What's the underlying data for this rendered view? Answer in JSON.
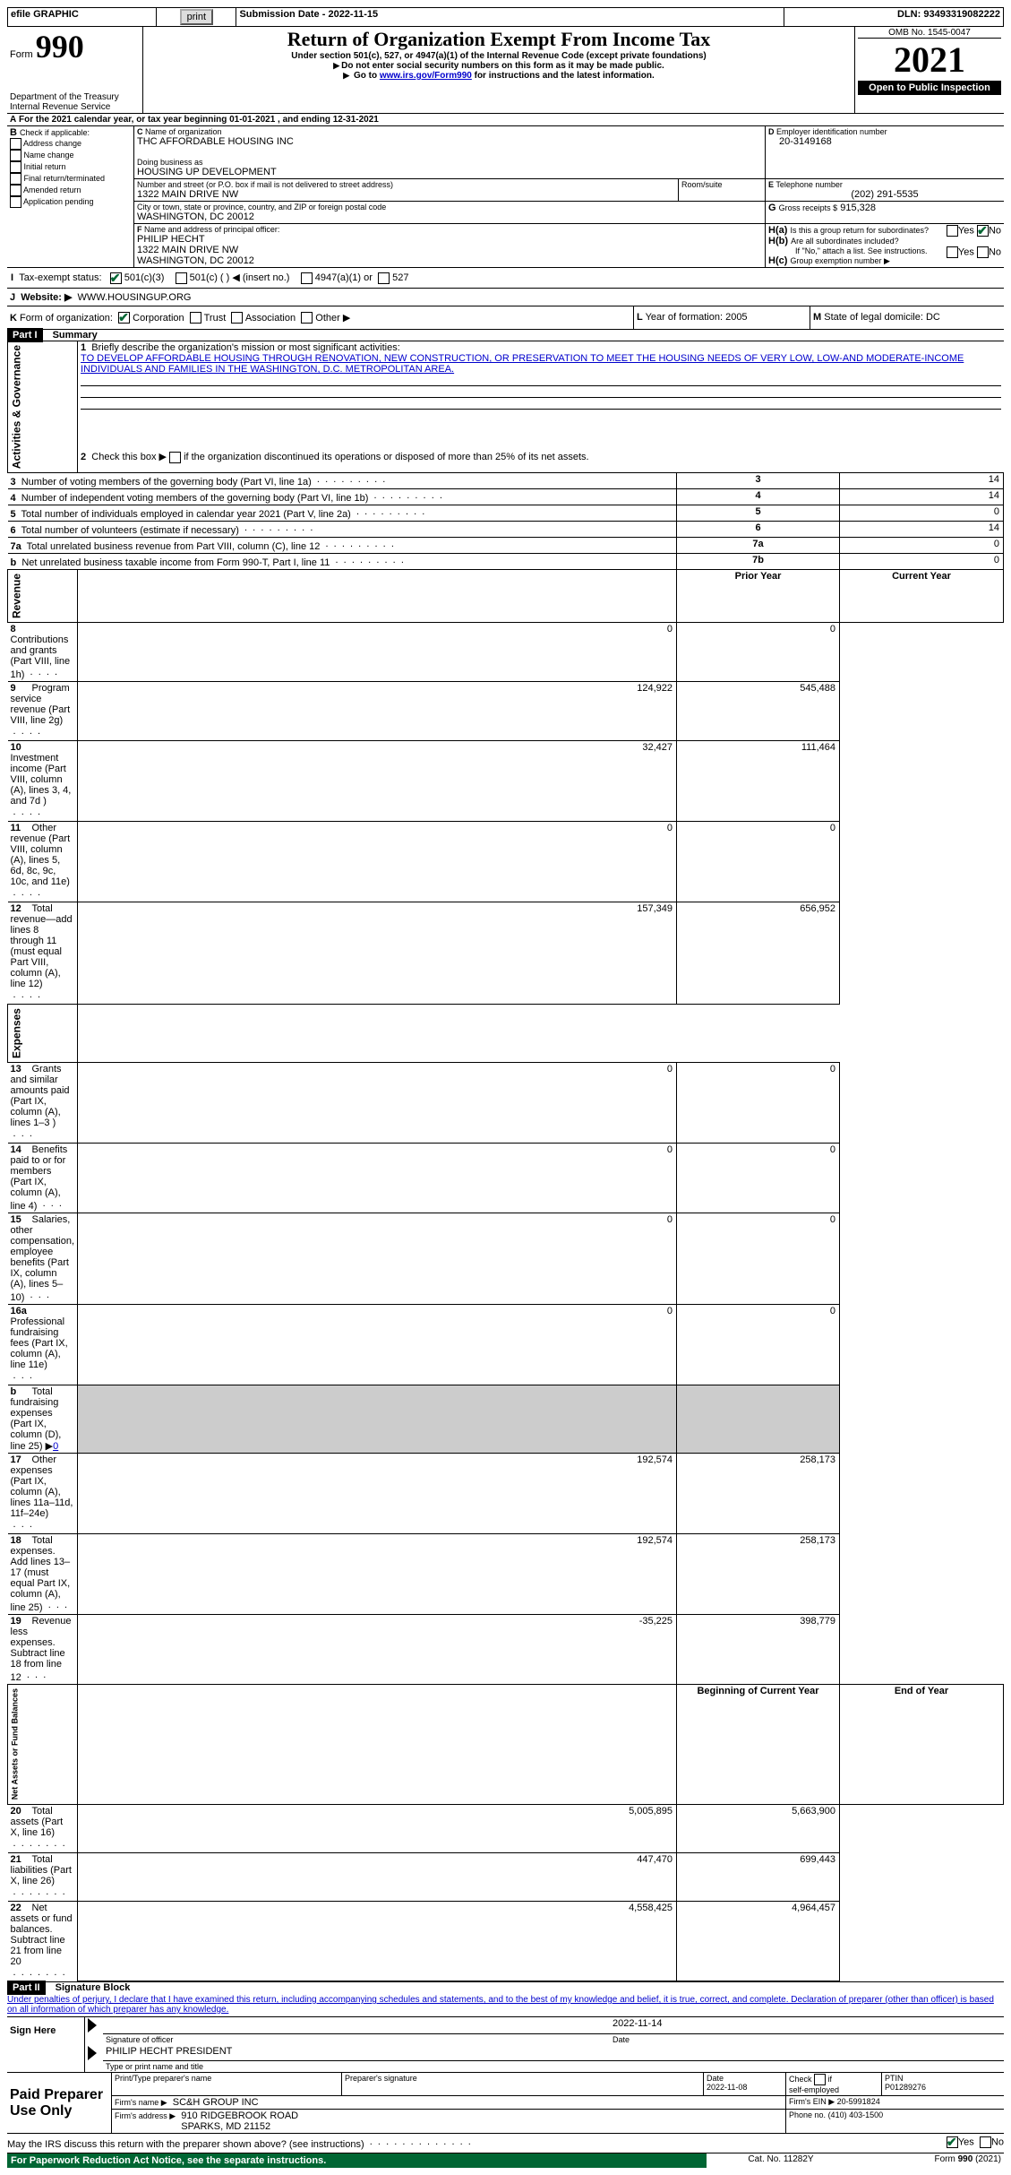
{
  "topbar": {
    "efile_label": "efile GRAPHIC",
    "print_btn": "print",
    "submission_label": "Submission Date - 2022-11-15",
    "dln_label": "DLN: 93493319082222"
  },
  "header": {
    "form_label": "Form",
    "form_number": "990",
    "dept": "Department of the Treasury\nInternal Revenue Service",
    "title": "Return of Organization Exempt From Income Tax",
    "subtitle": "Under section 501(c), 527, or 4947(a)(1) of the Internal Revenue Code (except private foundations)",
    "note1": "Do not enter social security numbers on this form as it may be made public.",
    "note2_pre": "Go to ",
    "note2_link": "www.irs.gov/Form990",
    "note2_post": " for instructions and the latest information.",
    "omb": "OMB No. 1545-0047",
    "year": "2021",
    "open_inspection": "Open to Public Inspection"
  },
  "sectionA": {
    "a_line": "For the 2021 calendar year, or tax year beginning 01-01-2021    , and ending 12-31-2021",
    "b_label": "Check if applicable:",
    "b_checks": [
      "Address change",
      "Name change",
      "Initial return",
      "Final return/terminated",
      "Amended return",
      "Application pending"
    ],
    "c_label": "Name of organization",
    "c_org": "THC AFFORDABLE HOUSING INC",
    "dba_label": "Doing business as",
    "dba": "HOUSING UP DEVELOPMENT",
    "street_label": "Number and street (or P.O. box if mail is not delivered to street address)",
    "street": "1322 MAIN DRIVE NW",
    "room_label": "Room/suite",
    "city_label": "City or town, state or province, country, and ZIP or foreign postal code",
    "city": "WASHINGTON, DC  20012",
    "d_label": "Employer identification number",
    "d_ein": "20-3149168",
    "e_label": "Telephone number",
    "e_phone": "(202) 291-5535",
    "g_label": "Gross receipts $",
    "g_amount": "915,328",
    "f_label": "Name and address of principal officer:",
    "f_officer": "PHILIP HECHT\n1322 MAIN DRIVE NW\nWASHINGTON, DC  20012",
    "ha_label": "Is this a group return for subordinates?",
    "hb_label": "Are all subordinates included?",
    "h_note": "If \"No,\" attach a list. See instructions.",
    "hc_label": "Group exemption number ▶",
    "yes": "Yes",
    "no": "No",
    "i_label": "Tax-exempt status:",
    "i_opts": [
      "501(c)(3)",
      "501(c) (  ) ◀ (insert no.)",
      "4947(a)(1) or",
      "527"
    ],
    "j_label": "Website: ▶",
    "j_site": "WWW.HOUSINGUP.ORG",
    "k_label": "Form of organization:",
    "k_opts": [
      "Corporation",
      "Trust",
      "Association",
      "Other ▶"
    ],
    "l_label": "Year of formation:",
    "l_val": "2005",
    "m_label": "State of legal domicile:",
    "m_val": "DC"
  },
  "part1": {
    "heading": "Part I",
    "title": "Summary",
    "line1_label": "Briefly describe the organization's mission or most significant activities:",
    "line1_text": "TO DEVELOP AFFORDABLE HOUSING THROUGH RENOVATION, NEW CONSTRUCTION, OR PRESERVATION TO MEET THE HOUSING NEEDS OF VERY LOW, LOW-AND MODERATE-INCOME INDIVIDUALS AND FAMILIES IN THE WASHINGTON, D.C. METROPOLITAN AREA.",
    "line2": "Check this box ▶  if the organization discontinued its operations or disposed of more than 25% of its net assets.",
    "governance_tab": "Activities & Governance",
    "revenue_tab": "Revenue",
    "expenses_tab": "Expenses",
    "netassets_tab": "Net Assets or Fund Balances",
    "gov_rows": [
      {
        "n": "3",
        "label": "Number of voting members of the governing body (Part VI, line 1a)",
        "box": "3",
        "val": "14"
      },
      {
        "n": "4",
        "label": "Number of independent voting members of the governing body (Part VI, line 1b)",
        "box": "4",
        "val": "14"
      },
      {
        "n": "5",
        "label": "Total number of individuals employed in calendar year 2021 (Part V, line 2a)",
        "box": "5",
        "val": "0"
      },
      {
        "n": "6",
        "label": "Total number of volunteers (estimate if necessary)",
        "box": "6",
        "val": "14"
      },
      {
        "n": "7a",
        "label": "Total unrelated business revenue from Part VIII, column (C), line 12",
        "box": "7a",
        "val": "0"
      },
      {
        "n": "b",
        "label": "Net unrelated business taxable income from Form 990-T, Part I, line 11",
        "box": "7b",
        "val": "0"
      }
    ],
    "col_prior": "Prior Year",
    "col_current": "Current Year",
    "rev_rows": [
      {
        "n": "8",
        "label": "Contributions and grants (Part VIII, line 1h)",
        "p": "0",
        "c": "0"
      },
      {
        "n": "9",
        "label": "Program service revenue (Part VIII, line 2g)",
        "p": "124,922",
        "c": "545,488"
      },
      {
        "n": "10",
        "label": "Investment income (Part VIII, column (A), lines 3, 4, and 7d )",
        "p": "32,427",
        "c": "111,464"
      },
      {
        "n": "11",
        "label": "Other revenue (Part VIII, column (A), lines 5, 6d, 8c, 9c, 10c, and 11e)",
        "p": "0",
        "c": "0"
      },
      {
        "n": "12",
        "label": "Total revenue—add lines 8 through 11 (must equal Part VIII, column (A), line 12)",
        "p": "157,349",
        "c": "656,952"
      }
    ],
    "exp_rows": [
      {
        "n": "13",
        "label": "Grants and similar amounts paid (Part IX, column (A), lines 1–3 )",
        "p": "0",
        "c": "0"
      },
      {
        "n": "14",
        "label": "Benefits paid to or for members (Part IX, column (A), line 4)",
        "p": "0",
        "c": "0"
      },
      {
        "n": "15",
        "label": "Salaries, other compensation, employee benefits (Part IX, column (A), lines 5–10)",
        "p": "0",
        "c": "0"
      },
      {
        "n": "16a",
        "label": "Professional fundraising fees (Part IX, column (A), line 11e)",
        "p": "0",
        "c": "0"
      },
      {
        "n": "b",
        "label": "Total fundraising expenses (Part IX, column (D), line 25) ▶",
        "link": "0",
        "p": "",
        "c": ""
      },
      {
        "n": "17",
        "label": "Other expenses (Part IX, column (A), lines 11a–11d, 11f–24e)",
        "p": "192,574",
        "c": "258,173"
      },
      {
        "n": "18",
        "label": "Total expenses. Add lines 13–17 (must equal Part IX, column (A), line 25)",
        "p": "192,574",
        "c": "258,173"
      },
      {
        "n": "19",
        "label": "Revenue less expenses. Subtract line 18 from line 12",
        "p": "-35,225",
        "c": "398,779"
      }
    ],
    "col_begin": "Beginning of Current Year",
    "col_end": "End of Year",
    "na_rows": [
      {
        "n": "20",
        "label": "Total assets (Part X, line 16)",
        "p": "5,005,895",
        "c": "5,663,900"
      },
      {
        "n": "21",
        "label": "Total liabilities (Part X, line 26)",
        "p": "447,470",
        "c": "699,443"
      },
      {
        "n": "22",
        "label": "Net assets or fund balances. Subtract line 21 from line 20",
        "p": "4,558,425",
        "c": "4,964,457"
      }
    ]
  },
  "part2": {
    "heading": "Part II",
    "title": "Signature Block",
    "declaration": "Under penalties of perjury, I declare that I have examined this return, including accompanying schedules and statements, and to the best of my knowledge and belief, it is true, correct, and complete. Declaration of preparer (other than officer) is based on all information of which preparer has any knowledge.",
    "sign_here": "Sign Here",
    "sig_officer_label": "Signature of officer",
    "sig_date": "2022-11-14",
    "date_label": "Date",
    "officer_name": "PHILIP HECHT PRESIDENT",
    "type_name_label": "Type or print name and title",
    "paid_prep": "Paid Preparer Use Only",
    "prep_name_label": "Print/Type preparer's name",
    "prep_sig_label": "Preparer's signature",
    "prep_date_label": "Date",
    "prep_date": "2022-11-08",
    "check_self": "Check        if self-employed",
    "ptin_label": "PTIN",
    "ptin": "P01289276",
    "firm_name_label": "Firm's name    ▶",
    "firm_name": "SC&H GROUP INC",
    "firm_ein_label": "Firm's EIN ▶",
    "firm_ein": "20-5991824",
    "firm_addr_label": "Firm's address ▶",
    "firm_addr": "910 RIDGEBROOK ROAD\nSPARKS, MD  21152",
    "phone_label": "Phone no.",
    "phone": "(410) 403-1500",
    "discuss": "May the IRS discuss this return with the preparer shown above? (see instructions)"
  },
  "footer": {
    "paperwork": "For Paperwork Reduction Act Notice, see the separate instructions.",
    "cat": "Cat. No. 11282Y",
    "form": "Form 990 (2021)"
  }
}
